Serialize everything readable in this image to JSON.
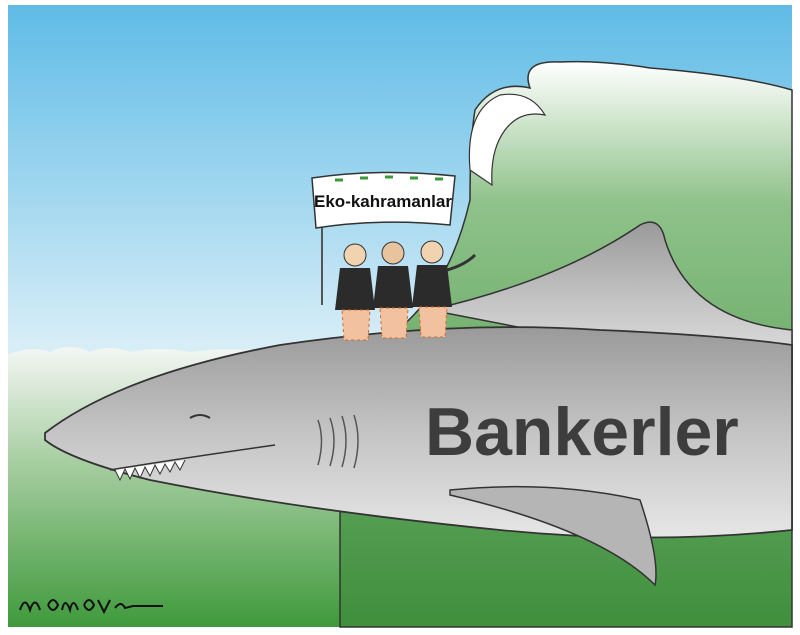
{
  "banner": {
    "text": "Eko-kahramanlar"
  },
  "shark": {
    "label": "Bankerler"
  }
}
